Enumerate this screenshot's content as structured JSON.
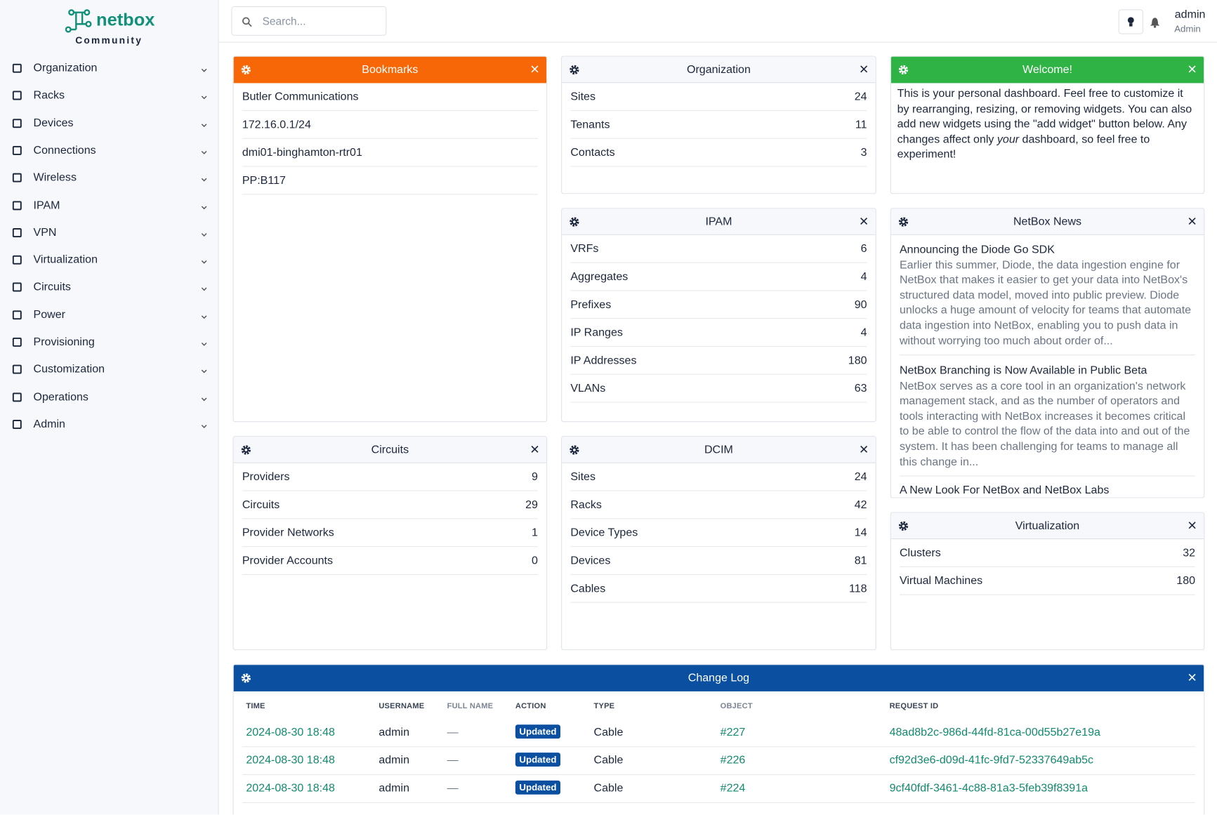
{
  "logo": {
    "name": "netbox",
    "edition": "Community"
  },
  "nav": [
    "Organization",
    "Racks",
    "Devices",
    "Connections",
    "Wireless",
    "IPAM",
    "VPN",
    "Virtualization",
    "Circuits",
    "Power",
    "Provisioning",
    "Customization",
    "Operations",
    "Admin"
  ],
  "search": {
    "placeholder": "Search..."
  },
  "user": {
    "name": "admin",
    "role": "Admin"
  },
  "widgets": [
    {
      "kind": "list",
      "title": "Bookmarks",
      "items": [
        "Butler Communications",
        "172.16.0.1/24",
        "dmi01-binghamton-rtr01",
        "PP:B117"
      ]
    },
    {
      "kind": "stats",
      "title": "Organization",
      "rows": [
        {
          "label": "Sites",
          "count": 24
        },
        {
          "label": "Tenants",
          "count": 11
        },
        {
          "label": "Contacts",
          "count": 3
        }
      ]
    },
    {
      "kind": "note",
      "title": "Welcome!",
      "before": "This is your personal dashboard. Feel free to customize it by rearranging, resizing, or removing widgets. You can also add new widgets using the \"add widget\" button below. Any changes affect only",
      "emphasis": "your",
      "after": "dashboard, so feel free to experiment!"
    },
    {
      "kind": "stats",
      "title": "IPAM",
      "rows": [
        {
          "label": "VRFs",
          "count": 6
        },
        {
          "label": "Aggregates",
          "count": 4
        },
        {
          "label": "Prefixes",
          "count": 90
        },
        {
          "label": "IP Ranges",
          "count": 4
        },
        {
          "label": "IP Addresses",
          "count": 180
        },
        {
          "label": "VLANs",
          "count": 63
        }
      ]
    },
    {
      "kind": "news",
      "title": "NetBox News",
      "items": [
        {
          "title": "Announcing the Diode Go SDK",
          "text": "Earlier this summer, Diode, the data ingestion engine for NetBox that makes it easier to get your data into NetBox's structured data model, moved into public preview. Diode unlocks a huge amount of velocity for teams that automate data ingestion into NetBox, enabling you to push data in without worrying too much about order of..."
        },
        {
          "title": "NetBox Branching is Now Available in Public Beta",
          "text": "NetBox serves as a core tool in an organization's network management stack, and as the number of operators and tools interacting with NetBox increases it becomes critical to be able to control the flow of the data into and out of the system. It has been challenging for teams to manage all this change in..."
        },
        {
          "title": "A New Look For NetBox and NetBox Labs"
        }
      ]
    },
    {
      "kind": "stats",
      "title": "Circuits",
      "rows": [
        {
          "label": "Providers",
          "count": 9
        },
        {
          "label": "Circuits",
          "count": 29
        },
        {
          "label": "Provider Networks",
          "count": 1
        },
        {
          "label": "Provider Accounts",
          "count": 0
        }
      ]
    },
    {
      "kind": "stats",
      "title": "DCIM",
      "rows": [
        {
          "label": "Sites",
          "count": 24
        },
        {
          "label": "Racks",
          "count": 42
        },
        {
          "label": "Device Types",
          "count": 14
        },
        {
          "label": "Devices",
          "count": 81
        },
        {
          "label": "Cables",
          "count": 118
        }
      ]
    },
    {
      "kind": "stats",
      "title": "Virtualization",
      "rows": [
        {
          "label": "Clusters",
          "count": 32
        },
        {
          "label": "Virtual Machines",
          "count": 180
        }
      ]
    },
    {
      "kind": "table",
      "title": "Change Log",
      "columns": [
        "TIME",
        "USERNAME",
        "FULL NAME",
        "ACTION",
        "TYPE",
        "OBJECT",
        "REQUEST ID"
      ],
      "rows": [
        [
          "2024-08-30 18:48",
          "admin",
          "—",
          "Updated",
          "Cable",
          "#227",
          "48ad8b2c-986d-44fd-81ca-00d55b27e19a"
        ],
        [
          "2024-08-30 18:48",
          "admin",
          "—",
          "Updated",
          "Cable",
          "#226",
          "cf92d3e6-d09d-41fc-9fd7-52337649ab5c"
        ],
        [
          "2024-08-30 18:48",
          "admin",
          "—",
          "Updated",
          "Cable",
          "#224",
          "9cf40fdf-3461-4c88-81a3-5feb39f8391a"
        ]
      ]
    }
  ]
}
